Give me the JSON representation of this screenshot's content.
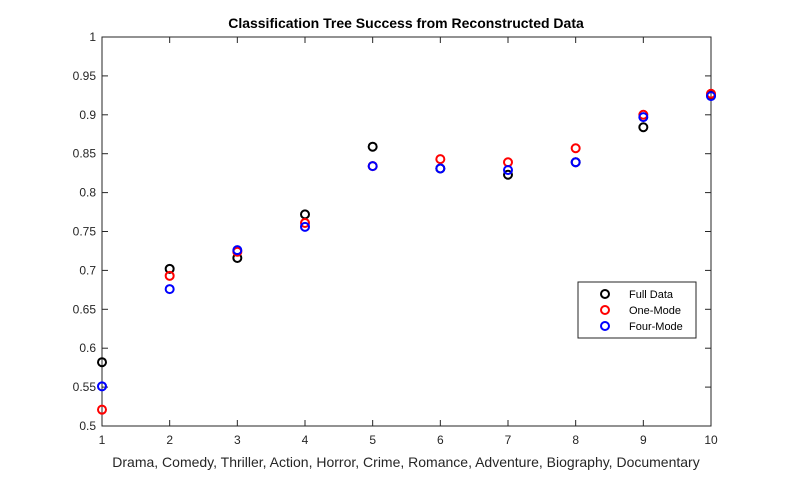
{
  "chart_data": {
    "type": "scatter",
    "title": "Classification Tree Success from Reconstructed Data",
    "xlabel": "Drama, Comedy, Thriller, Action, Horror, Crime, Romance, Adventure, Biography, Documentary",
    "ylabel": "",
    "xlim": [
      1,
      10
    ],
    "ylim": [
      0.5,
      1
    ],
    "xticks": [
      1,
      2,
      3,
      4,
      5,
      6,
      7,
      8,
      9,
      10
    ],
    "yticks": [
      0.5,
      0.55,
      0.6,
      0.65,
      0.7,
      0.75,
      0.8,
      0.85,
      0.9,
      0.95,
      1
    ],
    "ytick_labels": [
      "0.5",
      "0.55",
      "0.6",
      "0.65",
      "0.7",
      "0.75",
      "0.8",
      "0.85",
      "0.9",
      "0.95",
      "1"
    ],
    "x": [
      1,
      2,
      3,
      4,
      5,
      6,
      7,
      8,
      9,
      10
    ],
    "grid": false,
    "legend_position": "right",
    "series": [
      {
        "name": "Full Data",
        "color": "#000000",
        "marker": "circle",
        "values": [
          0.582,
          0.702,
          0.716,
          0.772,
          0.859,
          0.831,
          0.823,
          0.839,
          0.884,
          0.925
        ]
      },
      {
        "name": "One-Mode",
        "color": "#ff0000",
        "marker": "circle",
        "values": [
          0.521,
          0.693,
          0.724,
          0.761,
          0.834,
          0.843,
          0.839,
          0.857,
          0.9,
          0.927
        ]
      },
      {
        "name": "Four-Mode",
        "color": "#0000ff",
        "marker": "circle",
        "values": [
          0.551,
          0.676,
          0.726,
          0.756,
          0.834,
          0.831,
          0.829,
          0.839,
          0.897,
          0.924
        ]
      }
    ]
  }
}
